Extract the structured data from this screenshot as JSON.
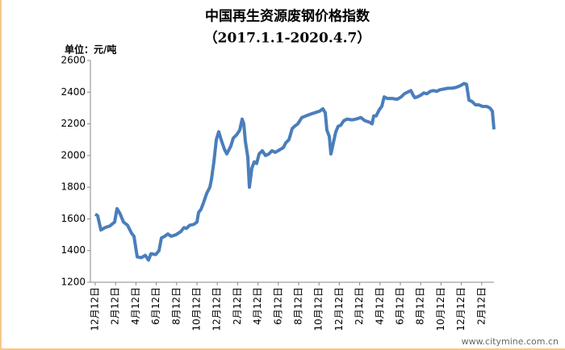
{
  "chart_data": {
    "type": "line",
    "title": "中国再生资源废钢价格指数",
    "subtitle": "（2017.1.1-2020.4.7）",
    "y_label": "单位：元/吨",
    "watermark": "www.citymine.com.cn",
    "ylim": [
      1200,
      2600
    ],
    "yticks": [
      1200,
      1400,
      1600,
      1800,
      2000,
      2200,
      2400,
      2600
    ],
    "xlim": [
      -6,
      494
    ],
    "xticks": [
      {
        "value": 0,
        "label": "12月12日"
      },
      {
        "value": 25.2,
        "label": "2月12日"
      },
      {
        "value": 50.4,
        "label": "4月12日"
      },
      {
        "value": 75.6,
        "label": "6月12日"
      },
      {
        "value": 100.8,
        "label": "8月12日"
      },
      {
        "value": 126,
        "label": "10月12日"
      },
      {
        "value": 151.2,
        "label": "12月12日"
      },
      {
        "value": 176.4,
        "label": "2月12日"
      },
      {
        "value": 201.6,
        "label": "4月12日"
      },
      {
        "value": 226.8,
        "label": "6月12日"
      },
      {
        "value": 252,
        "label": "8月12日"
      },
      {
        "value": 277.2,
        "label": "10月12日"
      },
      {
        "value": 302.4,
        "label": "12月12日"
      },
      {
        "value": 327.6,
        "label": "2月12日"
      },
      {
        "value": 352.8,
        "label": "4月12日"
      },
      {
        "value": 378,
        "label": "6月12日"
      },
      {
        "value": 403.2,
        "label": "8月12日"
      },
      {
        "value": 428.4,
        "label": "10月12日"
      },
      {
        "value": 453.6,
        "label": "12月12日"
      },
      {
        "value": 478.8,
        "label": "2月12日"
      }
    ],
    "grid": false,
    "series": [
      {
        "color": "#4a7ebb",
        "x": [
          0,
          3,
          7,
          12,
          18,
          24,
          27,
          31,
          35,
          40,
          45,
          48,
          52,
          57,
          62,
          66,
          69,
          75,
          79,
          82,
          86,
          90,
          94,
          100,
          106,
          110,
          113,
          117,
          122,
          126,
          128,
          131,
          134,
          138,
          142,
          144,
          147,
          150,
          153,
          156,
          160,
          163,
          168,
          171,
          175,
          179,
          182,
          184,
          186,
          189,
          191,
          194,
          197,
          200,
          203,
          207,
          211,
          215,
          219,
          223,
          228,
          233,
          236,
          240,
          244,
          247,
          251,
          256,
          261,
          266,
          272,
          278,
          282,
          285,
          287,
          290,
          292,
          295,
          298,
          301,
          304,
          308,
          312,
          318,
          323,
          329,
          334,
          340,
          343,
          345,
          348,
          352,
          355,
          358,
          362,
          368,
          374,
          379,
          383,
          387,
          391,
          394,
          396,
          399,
          403,
          407,
          411,
          415,
          419,
          423,
          427,
          432,
          437,
          442,
          447,
          452,
          457,
          460,
          463,
          467,
          471,
          475,
          480,
          485,
          489,
          492,
          494
        ],
        "values": [
          1630,
          1620,
          1530,
          1545,
          1555,
          1580,
          1665,
          1630,
          1580,
          1560,
          1510,
          1490,
          1360,
          1355,
          1370,
          1340,
          1380,
          1375,
          1400,
          1480,
          1490,
          1505,
          1490,
          1500,
          1520,
          1545,
          1540,
          1560,
          1565,
          1580,
          1640,
          1660,
          1700,
          1760,
          1800,
          1850,
          1960,
          2100,
          2150,
          2100,
          2040,
          2010,
          2060,
          2110,
          2130,
          2160,
          2230,
          2200,
          2090,
          1990,
          1800,
          1920,
          1960,
          1950,
          2010,
          2030,
          2000,
          2010,
          2030,
          2020,
          2035,
          2050,
          2080,
          2100,
          2170,
          2185,
          2200,
          2240,
          2250,
          2260,
          2270,
          2280,
          2295,
          2270,
          2160,
          2120,
          2010,
          2080,
          2150,
          2185,
          2190,
          2220,
          2230,
          2225,
          2230,
          2240,
          2220,
          2210,
          2200,
          2250,
          2250,
          2290,
          2310,
          2370,
          2360,
          2360,
          2355,
          2370,
          2390,
          2400,
          2410,
          2380,
          2365,
          2370,
          2380,
          2395,
          2390,
          2405,
          2410,
          2405,
          2415,
          2420,
          2425,
          2425,
          2430,
          2440,
          2455,
          2450,
          2350,
          2340,
          2320,
          2320,
          2310,
          2310,
          2300,
          2280,
          2165
        ]
      }
    ]
  }
}
